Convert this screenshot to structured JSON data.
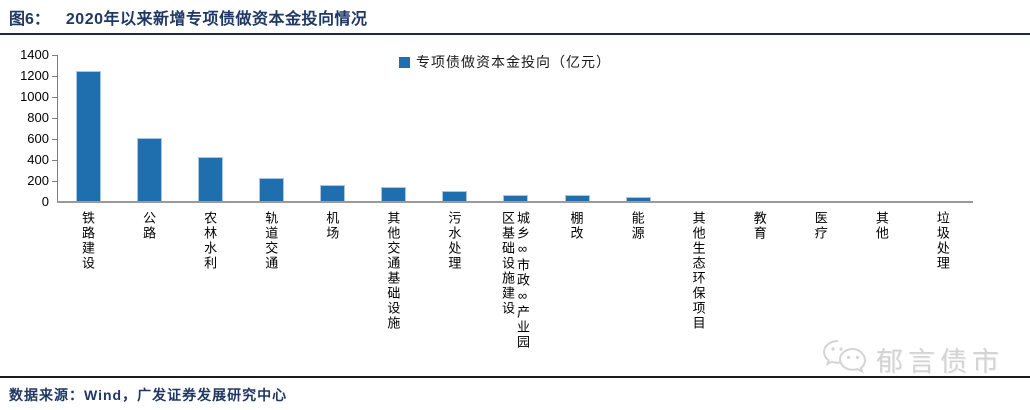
{
  "header": {
    "figure_label": "图6：",
    "title": "2020年以来新增专项债做资本金投向情况"
  },
  "legend": {
    "label": "专项债做资本金投向（亿元）"
  },
  "chart_data": {
    "type": "bar",
    "title": "2020年以来新增专项债做资本金投向情况",
    "categories": [
      "铁路建设",
      "公路",
      "农林水利",
      "轨道交通",
      "机场",
      "其他交通基础设施",
      "污水处理",
      "城乡∞市政∞产业园区基础设施建设",
      "棚改",
      "能源",
      "其他生态环保项目",
      "教育",
      "医疗",
      "其他",
      "垃圾处理"
    ],
    "values": [
      1250,
      605,
      430,
      225,
      160,
      140,
      105,
      70,
      65,
      45,
      10,
      5,
      3,
      3,
      3
    ],
    "series_name": "专项债做资本金投向（亿元）",
    "xlabel": "",
    "ylabel": "",
    "ylim": [
      0,
      1400
    ],
    "yticks": [
      0,
      200,
      400,
      600,
      800,
      1000,
      1200,
      1400
    ],
    "grid": false,
    "legend_position": "top-center",
    "bar_color": "#1f6fae"
  },
  "footer": {
    "source": "数据来源：Wind，广发证券发展研究中心"
  },
  "watermark": {
    "text": "郁言债市",
    "icon": "wechat-chat-bubbles-icon"
  },
  "colors": {
    "accent_navy": "#1f3864",
    "bar_blue": "#1f6fae",
    "bar_edge": "#aac6e4",
    "axis_gray": "#7f7f7f",
    "watermark_gray": "#d4d4d4"
  }
}
